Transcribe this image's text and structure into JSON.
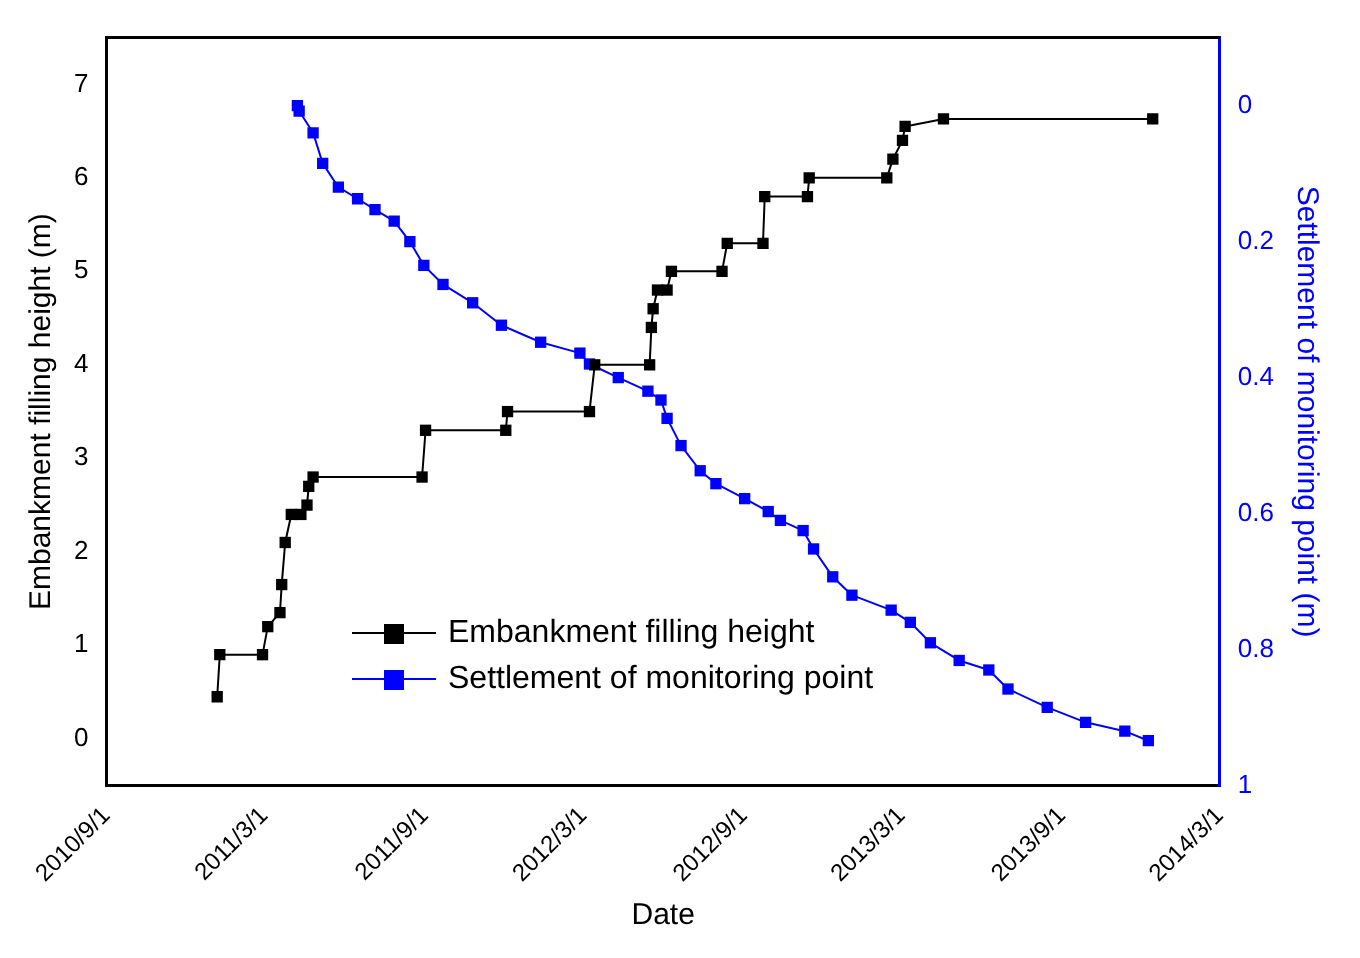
{
  "chart_data": {
    "type": "line",
    "xlabel": "Date",
    "ylabel": "Embankment filling height (m)",
    "y2label": "Settlement of monitoring point (m)",
    "xlim": [
      "2010-09-01",
      "2014-03-01"
    ],
    "xticks": [
      {
        "value": "2010-09-01",
        "label": "2010/9/1"
      },
      {
        "value": "2011-03-01",
        "label": "2011/3/1"
      },
      {
        "value": "2011-09-01",
        "label": "2011/9/1"
      },
      {
        "value": "2012-03-01",
        "label": "2012/3/1"
      },
      {
        "value": "2012-09-01",
        "label": "2012/9/1"
      },
      {
        "value": "2013-03-01",
        "label": "2013/3/1"
      },
      {
        "value": "2013-09-01",
        "label": "2013/9/1"
      },
      {
        "value": "2014-03-01",
        "label": "2014/3/1"
      }
    ],
    "ylim": [
      -0.5,
      7.5
    ],
    "yticks": [
      0,
      1,
      2,
      3,
      4,
      5,
      6,
      7
    ],
    "y2lim": [
      1,
      -0.1
    ],
    "y2ticks": [
      0,
      0.2,
      0.4,
      0.6,
      0.8,
      1
    ],
    "marker": "square",
    "line_style": "solid",
    "grid": false,
    "legend": "bottom",
    "series": [
      {
        "name": "Embankment filling height",
        "color": "#000000",
        "x": [
          "2011-01-06",
          "2011-01-09",
          "2011-02-27",
          "2011-03-05",
          "2011-03-19",
          "2011-03-21",
          "2011-03-25",
          "2011-04-01",
          "2011-04-12",
          "2011-04-19",
          "2011-04-21",
          "2011-04-26",
          "2011-08-29",
          "2011-09-02",
          "2011-12-03",
          "2011-12-05",
          "2012-03-08",
          "2012-03-14",
          "2012-05-16",
          "2012-05-18",
          "2012-05-20",
          "2012-05-25",
          "2012-06-05",
          "2012-06-10",
          "2012-08-07",
          "2012-08-13",
          "2012-09-23",
          "2012-09-25",
          "2012-11-13",
          "2012-11-15",
          "2013-02-12",
          "2013-02-19",
          "2013-03-02",
          "2013-03-05",
          "2013-04-18",
          "2013-12-14"
        ],
        "values": [
          0.45,
          0.9,
          0.9,
          1.2,
          1.35,
          1.65,
          2.1,
          2.4,
          2.4,
          2.5,
          2.7,
          2.8,
          2.8,
          3.3,
          3.3,
          3.5,
          3.5,
          4.0,
          4.0,
          4.4,
          4.6,
          4.8,
          4.8,
          5.0,
          5.0,
          5.3,
          5.3,
          5.8,
          5.8,
          6.0,
          6.0,
          6.2,
          6.4,
          6.55,
          6.63,
          6.63
        ]
      },
      {
        "name": "Settlement of monitoring point",
        "color": "#0000ff",
        "axis": "y2",
        "x": [
          "2011-04-08",
          "2011-04-10",
          "2011-04-26",
          "2011-05-07",
          "2011-05-25",
          "2011-06-16",
          "2011-07-06",
          "2011-07-28",
          "2011-08-15",
          "2011-08-31",
          "2011-09-22",
          "2011-10-26",
          "2011-11-28",
          "2012-01-12",
          "2012-02-26",
          "2012-03-08",
          "2012-04-10",
          "2012-05-14",
          "2012-05-29",
          "2012-06-05",
          "2012-06-21",
          "2012-07-13",
          "2012-07-31",
          "2012-09-02",
          "2012-09-29",
          "2012-10-13",
          "2012-11-08",
          "2012-11-20",
          "2012-12-12",
          "2013-01-03",
          "2013-02-17",
          "2013-03-11",
          "2013-04-03",
          "2013-05-06",
          "2013-06-09",
          "2013-07-01",
          "2013-08-15",
          "2013-09-28",
          "2013-11-12",
          "2013-12-09"
        ],
        "values": [
          0,
          0.008,
          0.04,
          0.085,
          0.12,
          0.137,
          0.153,
          0.17,
          0.2,
          0.235,
          0.263,
          0.29,
          0.323,
          0.348,
          0.364,
          0.38,
          0.4,
          0.42,
          0.433,
          0.46,
          0.5,
          0.537,
          0.556,
          0.578,
          0.597,
          0.61,
          0.625,
          0.652,
          0.693,
          0.72,
          0.742,
          0.76,
          0.79,
          0.816,
          0.83,
          0.858,
          0.885,
          0.907,
          0.92,
          0.934
        ]
      }
    ]
  }
}
